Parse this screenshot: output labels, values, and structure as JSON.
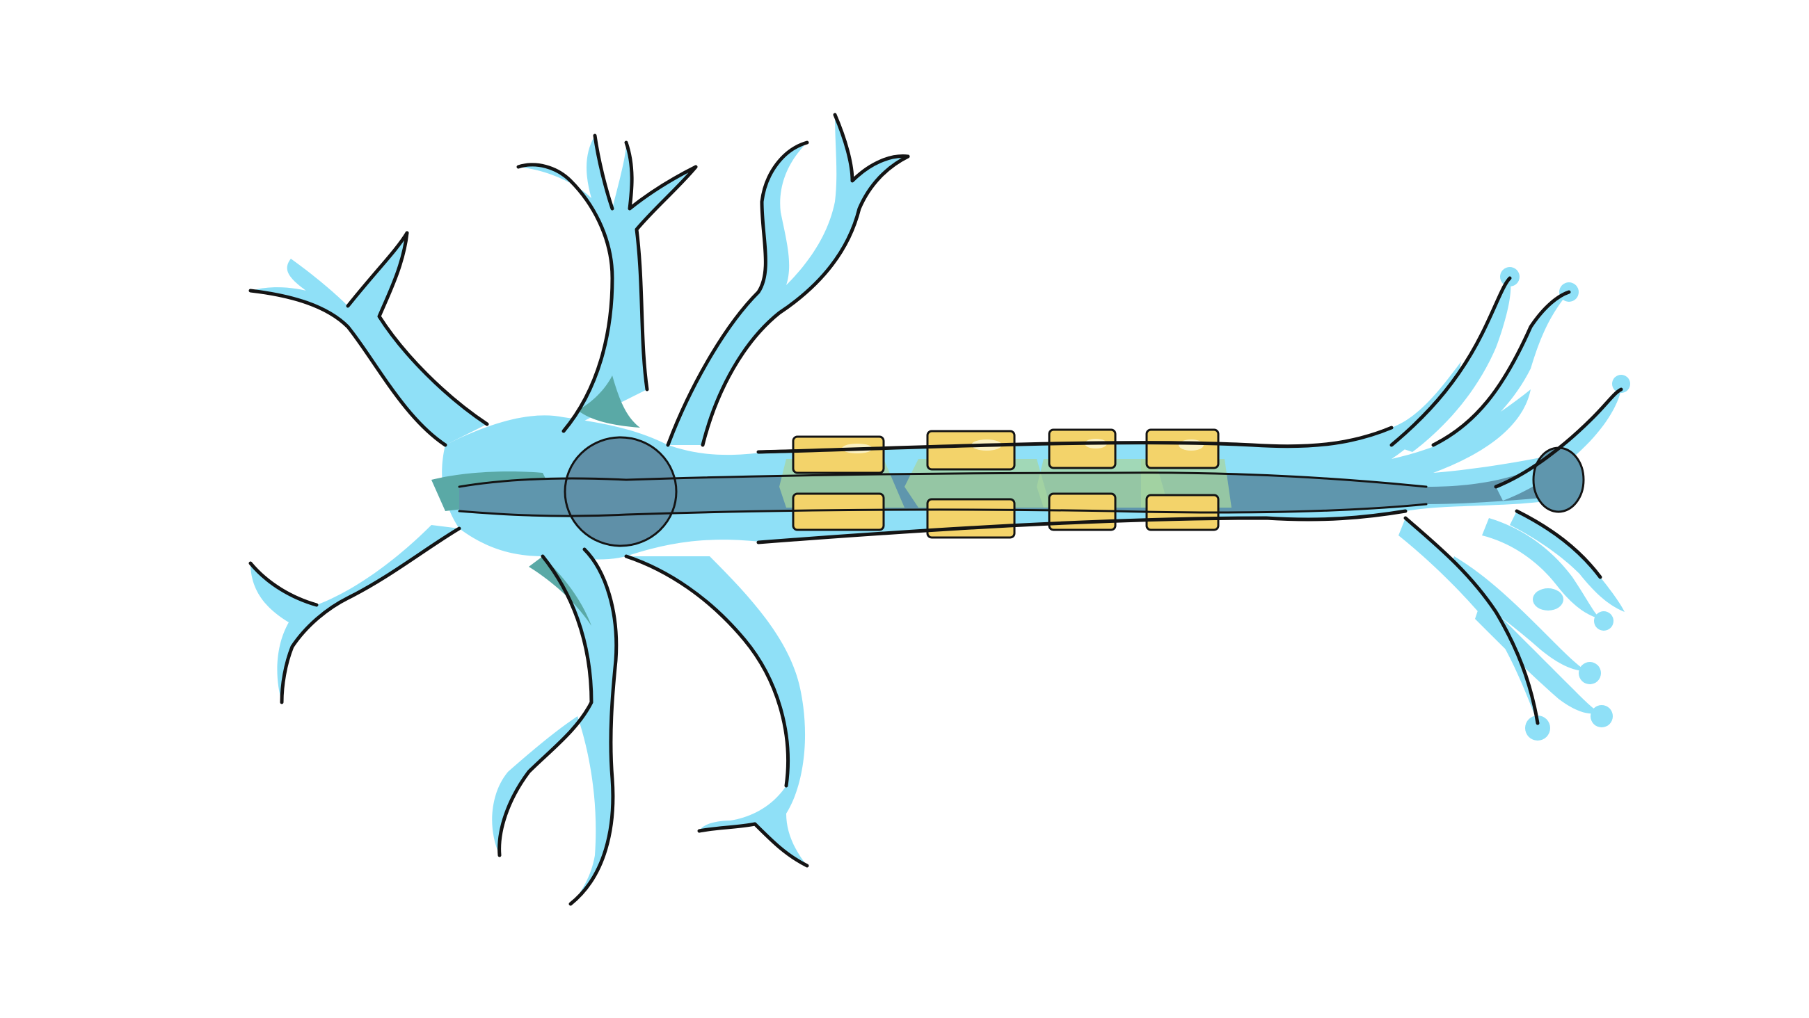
{
  "diagram": {
    "subject": "neuron",
    "parts": [
      {
        "id": "dendrites",
        "count": 6
      },
      {
        "id": "cell-body"
      },
      {
        "id": "nucleus"
      },
      {
        "id": "axon"
      },
      {
        "id": "myelin-sheath",
        "segments": 4
      },
      {
        "id": "axon-terminals",
        "count": 9
      }
    ]
  },
  "colors": {
    "background": "#ffffff",
    "membrane": "#8fe0f7",
    "membrane_shadow": "#5aa9a6",
    "axoplasm": "#5f96ad",
    "nucleus": "#5f90a8",
    "myelin": "#f3d36a",
    "myelin_shadow": "#d7a83a",
    "myelin_highlight": "#fbf1c2",
    "node_glow": "#a7d6a1",
    "outline": "#141414"
  }
}
